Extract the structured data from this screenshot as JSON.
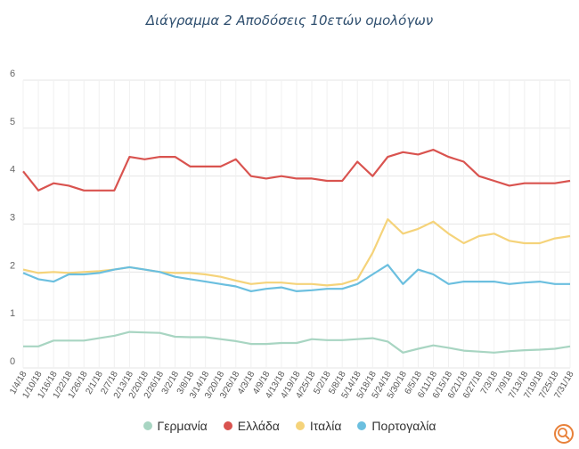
{
  "chart_data": {
    "type": "line",
    "title": "Διάγραμμα 2 Αποδόσεις 10ετών ομολόγων",
    "ylim": [
      0,
      6
    ],
    "yticks": [
      "0",
      "1",
      "2",
      "3",
      "4",
      "5",
      "6"
    ],
    "grid": true,
    "legend_position": "bottom",
    "x_tick_labels": [
      "1/4/18",
      "1/10/18",
      "1/16/18",
      "1/22/18",
      "1/26/18",
      "2/1/18",
      "2/7/18",
      "2/13/18",
      "2/20/18",
      "2/26/18",
      "3/2/18",
      "3/8/18",
      "3/14/18",
      "3/20/18",
      "3/26/18",
      "4/3/18",
      "4/9/18",
      "4/13/18",
      "4/19/18",
      "4/25/18",
      "5/2/18",
      "5/8/18",
      "5/14/18",
      "5/18/18",
      "5/24/18",
      "5/30/18",
      "6/5/18",
      "6/11/18",
      "6/15/18",
      "6/21/18",
      "6/27/18",
      "7/3/18",
      "7/9/18",
      "7/13/18",
      "7/19/18",
      "7/25/18",
      "7/31/18"
    ],
    "series": [
      {
        "name": "Γερμανία",
        "color": "#a8d5c2",
        "values": [
          0.45,
          0.45,
          0.57,
          0.57,
          0.57,
          0.62,
          0.67,
          0.75,
          0.74,
          0.73,
          0.65,
          0.64,
          0.64,
          0.6,
          0.56,
          0.5,
          0.5,
          0.52,
          0.52,
          0.6,
          0.58,
          0.58,
          0.6,
          0.62,
          0.55,
          0.32,
          0.4,
          0.47,
          0.42,
          0.36,
          0.34,
          0.32,
          0.35,
          0.37,
          0.38,
          0.4,
          0.45
        ]
      },
      {
        "name": "Ελλάδα",
        "color": "#d9534f",
        "values": [
          4.1,
          3.7,
          3.85,
          3.8,
          3.7,
          3.7,
          3.7,
          4.4,
          4.35,
          4.4,
          4.4,
          4.2,
          4.2,
          4.2,
          4.35,
          4.0,
          3.95,
          4.0,
          3.95,
          3.95,
          3.9,
          3.9,
          4.3,
          4.0,
          4.4,
          4.5,
          4.45,
          4.55,
          4.4,
          4.3,
          4.0,
          3.9,
          3.8,
          3.85,
          3.85,
          3.85,
          3.9
        ]
      },
      {
        "name": "Ιταλία",
        "color": "#f5d37a",
        "values": [
          2.05,
          1.98,
          2.0,
          1.98,
          2.0,
          2.02,
          2.05,
          2.1,
          2.05,
          2.0,
          1.98,
          1.98,
          1.95,
          1.9,
          1.82,
          1.75,
          1.78,
          1.78,
          1.75,
          1.75,
          1.72,
          1.75,
          1.85,
          2.4,
          3.1,
          2.8,
          2.9,
          3.05,
          2.8,
          2.6,
          2.75,
          2.8,
          2.65,
          2.6,
          2.6,
          2.7,
          2.75
        ]
      },
      {
        "name": "Πορτογαλία",
        "color": "#6bbfdf",
        "values": [
          1.98,
          1.85,
          1.8,
          1.95,
          1.95,
          1.98,
          2.05,
          2.1,
          2.05,
          2.0,
          1.9,
          1.85,
          1.8,
          1.75,
          1.7,
          1.6,
          1.65,
          1.68,
          1.6,
          1.62,
          1.65,
          1.65,
          1.75,
          1.95,
          2.15,
          1.75,
          2.05,
          1.95,
          1.75,
          1.8,
          1.8,
          1.8,
          1.75,
          1.78,
          1.8,
          1.75,
          1.75
        ]
      }
    ]
  }
}
